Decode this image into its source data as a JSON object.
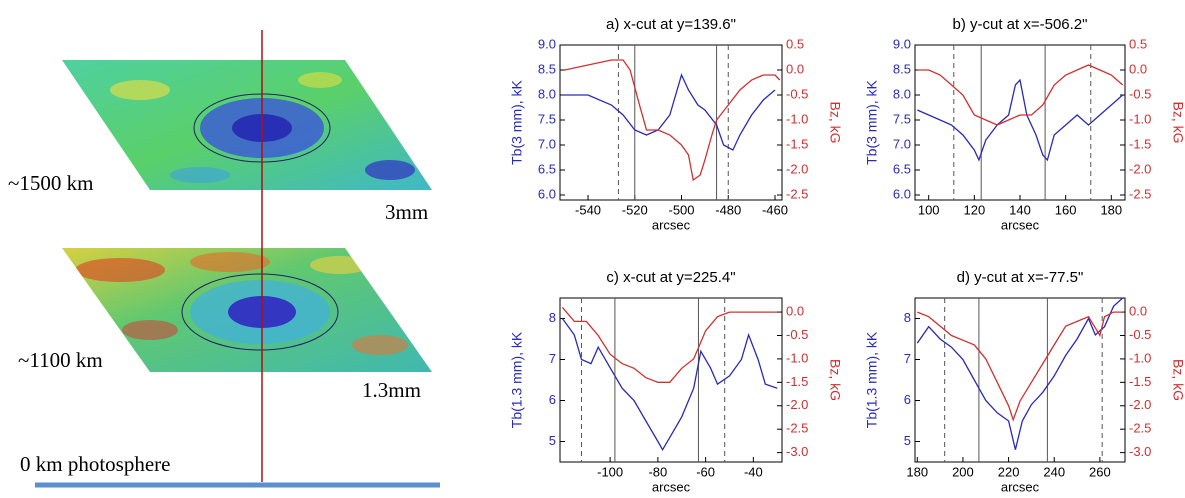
{
  "illustration": {
    "labels": [
      "~1500 km",
      "3mm",
      "~1100 km",
      "1.3mm",
      "0 km photosphere"
    ]
  },
  "chart_data": [
    {
      "type": "line",
      "title": "a) x-cut at y=139.6\"",
      "xlabel": "arcsec",
      "ylabel": "Tb(3 mm), kK",
      "y2label": "Bz, kG",
      "xlim": [
        -552,
        -457
      ],
      "xticks": [
        -540,
        -520,
        -500,
        -480,
        -460
      ],
      "ylim": [
        5.9,
        9.0
      ],
      "yticks": [
        {
          "value": 6,
          "label": "6.0"
        },
        6.5,
        {
          "value": 7,
          "label": "7.0"
        },
        7.5,
        {
          "value": 8,
          "label": "8.0"
        },
        8.5,
        {
          "value": 9,
          "label": "9.0"
        }
      ],
      "y2lim": [
        -2.6,
        0.5
      ],
      "y2ticks": [
        0.5,
        {
          "value": 0,
          "label": "0.0"
        },
        -0.5,
        {
          "value": -1,
          "label": "-1.0"
        },
        -1.5,
        {
          "value": -2,
          "label": "-2.0"
        },
        -2.5
      ],
      "vlines_solid": [
        -520,
        -485
      ],
      "vlines_dashed": [
        -527,
        -480
      ],
      "series": [
        {
          "color": "#2a2ab8",
          "x": [
            -550,
            -540,
            -530,
            -525,
            -520,
            -515,
            -510,
            -505,
            -500,
            -497,
            -493,
            -490,
            -485,
            -482,
            -478,
            -475,
            -470,
            -465,
            -460
          ],
          "values": [
            8.0,
            8.0,
            7.8,
            7.6,
            7.3,
            7.2,
            7.3,
            7.6,
            8.4,
            8.1,
            7.8,
            7.7,
            7.4,
            7.0,
            6.9,
            7.2,
            7.6,
            7.9,
            8.1
          ]
        },
        {
          "color": "#d03030",
          "axis": "y2",
          "x": [
            -550,
            -540,
            -530,
            -525,
            -522,
            -518,
            -515,
            -510,
            -505,
            -500,
            -497,
            -495,
            -492,
            -490,
            -487,
            -485,
            -480,
            -475,
            -470,
            -465,
            -460,
            -458
          ],
          "values": [
            0.0,
            0.1,
            0.2,
            0.2,
            0.0,
            -0.7,
            -1.2,
            -1.2,
            -1.3,
            -1.5,
            -1.7,
            -2.2,
            -2.1,
            -1.8,
            -1.3,
            -1.0,
            -0.7,
            -0.4,
            -0.2,
            -0.1,
            -0.1,
            -0.2
          ]
        }
      ]
    },
    {
      "type": "line",
      "title": "b) y-cut at x=-506.2\"",
      "xlabel": "arcsec",
      "ylabel": "Tb(3 mm), kK",
      "y2label": "Bz, kG",
      "xlim": [
        94,
        186
      ],
      "xticks": [
        100,
        120,
        140,
        160,
        180
      ],
      "ylim": [
        5.9,
        9.0
      ],
      "yticks": [
        {
          "value": 6,
          "label": "6.0"
        },
        6.5,
        {
          "value": 7,
          "label": "7.0"
        },
        7.5,
        {
          "value": 8,
          "label": "8.0"
        },
        8.5,
        {
          "value": 9,
          "label": "9.0"
        }
      ],
      "y2lim": [
        -2.6,
        0.5
      ],
      "y2ticks": [
        0.5,
        {
          "value": 0,
          "label": "0.0"
        },
        -0.5,
        {
          "value": -1,
          "label": "-1.0"
        },
        -1.5,
        {
          "value": -2,
          "label": "-2.0"
        },
        -2.5
      ],
      "vlines_solid": [
        123,
        151
      ],
      "vlines_dashed": [
        111,
        171
      ],
      "series": [
        {
          "color": "#2a2ab8",
          "x": [
            95,
            100,
            105,
            110,
            115,
            120,
            122,
            125,
            130,
            135,
            138,
            140,
            143,
            147,
            150,
            152,
            155,
            160,
            165,
            170,
            175,
            180,
            185
          ],
          "values": [
            7.7,
            7.6,
            7.5,
            7.4,
            7.2,
            6.9,
            6.7,
            7.1,
            7.4,
            7.6,
            8.2,
            8.3,
            7.6,
            7.2,
            6.8,
            6.7,
            7.2,
            7.4,
            7.6,
            7.4,
            7.6,
            7.8,
            8.0
          ]
        },
        {
          "color": "#d03030",
          "axis": "y2",
          "x": [
            95,
            100,
            105,
            110,
            115,
            120,
            125,
            130,
            135,
            140,
            145,
            150,
            155,
            160,
            165,
            170,
            175,
            180,
            185
          ],
          "values": [
            0.0,
            0.0,
            -0.1,
            -0.3,
            -0.5,
            -0.9,
            -1.0,
            -1.1,
            -1.0,
            -0.9,
            -0.9,
            -0.7,
            -0.3,
            -0.1,
            0.0,
            0.1,
            0.0,
            -0.1,
            -0.3
          ]
        }
      ]
    },
    {
      "type": "line",
      "title": "c) x-cut at y=225.4\"",
      "xlabel": "arcsec",
      "ylabel": "Tb(1.3 mm), kK",
      "y2label": "Bz, kG",
      "xlim": [
        -121,
        -28
      ],
      "xticks": [
        -100,
        -80,
        -60,
        -40
      ],
      "ylim": [
        4.5,
        8.5
      ],
      "yticks": [
        5,
        6,
        7,
        8
      ],
      "y2lim": [
        -3.2,
        0.3
      ],
      "y2ticks": [
        {
          "value": 0,
          "label": "0.0"
        },
        -0.5,
        {
          "value": -1,
          "label": "-1.0"
        },
        -1.5,
        {
          "value": -2,
          "label": "-2.0"
        },
        -2.5,
        {
          "value": -3,
          "label": "-3.0"
        }
      ],
      "vlines_solid": [
        -98,
        -63
      ],
      "vlines_dashed": [
        -112,
        -52
      ],
      "series": [
        {
          "color": "#2a2ab8",
          "x": [
            -120,
            -115,
            -112,
            -108,
            -105,
            -100,
            -95,
            -90,
            -85,
            -80,
            -78,
            -75,
            -70,
            -65,
            -62,
            -58,
            -55,
            -50,
            -45,
            -42,
            -38,
            -35,
            -30
          ],
          "values": [
            8.0,
            7.6,
            7.0,
            6.9,
            7.3,
            6.8,
            6.3,
            6.0,
            5.5,
            5.0,
            4.8,
            5.1,
            5.6,
            6.3,
            7.2,
            6.8,
            6.4,
            6.6,
            7.0,
            7.6,
            7.0,
            6.4,
            6.3
          ]
        },
        {
          "color": "#d03030",
          "axis": "y2",
          "x": [
            -120,
            -115,
            -110,
            -105,
            -100,
            -95,
            -90,
            -85,
            -80,
            -75,
            -70,
            -65,
            -60,
            -55,
            -50,
            -45,
            -40,
            -35,
            -30
          ],
          "values": [
            0.1,
            -0.2,
            -0.2,
            -0.5,
            -0.9,
            -1.1,
            -1.2,
            -1.4,
            -1.5,
            -1.5,
            -1.2,
            -1.0,
            -0.4,
            -0.1,
            0.0,
            0.0,
            0.0,
            0.0,
            0.0
          ]
        }
      ]
    },
    {
      "type": "line",
      "title": "d) y-cut at x=-77.5\"",
      "xlabel": "arcsec",
      "ylabel": "Tb(1.3 mm), kK",
      "y2label": "Bz, kG",
      "xlim": [
        179,
        271
      ],
      "xticks": [
        180,
        200,
        220,
        240,
        260
      ],
      "ylim": [
        4.5,
        8.5
      ],
      "yticks": [
        5,
        6,
        7,
        8
      ],
      "y2lim": [
        -3.2,
        0.3
      ],
      "y2ticks": [
        {
          "value": 0,
          "label": "0.0"
        },
        -0.5,
        {
          "value": -1,
          "label": "-1.0"
        },
        -1.5,
        {
          "value": -2,
          "label": "-2.0"
        },
        -2.5,
        {
          "value": -3,
          "label": "-3.0"
        }
      ],
      "vlines_solid": [
        207,
        237
      ],
      "vlines_dashed": [
        192,
        261
      ],
      "series": [
        {
          "color": "#2a2ab8",
          "x": [
            180,
            185,
            190,
            195,
            200,
            205,
            210,
            215,
            220,
            223,
            226,
            230,
            235,
            240,
            245,
            250,
            255,
            258,
            262,
            266,
            270
          ],
          "values": [
            7.4,
            7.8,
            7.5,
            7.3,
            7.0,
            6.5,
            6.0,
            5.7,
            5.5,
            4.8,
            5.5,
            5.9,
            6.2,
            6.6,
            7.1,
            7.5,
            8.0,
            7.6,
            7.8,
            8.3,
            8.5
          ]
        },
        {
          "color": "#d03030",
          "axis": "y2",
          "x": [
            180,
            185,
            190,
            195,
            200,
            205,
            210,
            215,
            220,
            222,
            225,
            230,
            235,
            240,
            245,
            250,
            255,
            260,
            262,
            266,
            270
          ],
          "values": [
            0.0,
            -0.1,
            -0.3,
            -0.5,
            -0.6,
            -0.7,
            -1.0,
            -1.5,
            -2.0,
            -2.3,
            -1.9,
            -1.5,
            -1.1,
            -0.7,
            -0.3,
            -0.2,
            -0.1,
            -0.5,
            -0.1,
            0.0,
            0.0
          ]
        }
      ]
    }
  ]
}
